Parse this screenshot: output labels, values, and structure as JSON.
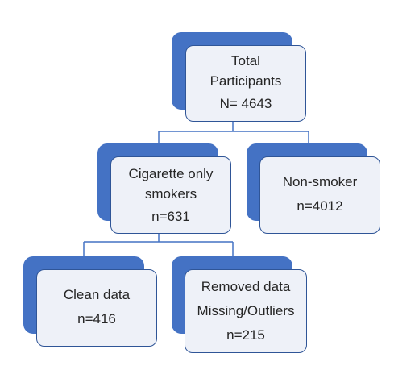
{
  "colors": {
    "shadow": "#4472C4",
    "card_fill": "#EEF1F8",
    "card_border": "#2F5597",
    "connector": "#4472C4",
    "text": "#262626"
  },
  "nodes": {
    "total": {
      "lines": [
        "Total",
        "Participants",
        "N= 4643"
      ]
    },
    "cigarette": {
      "lines": [
        "Cigarette only",
        "smokers",
        "n=631"
      ]
    },
    "nonsmoker": {
      "lines": [
        "Non-smoker",
        "n=4012"
      ]
    },
    "clean": {
      "lines": [
        "Clean data",
        "n=416"
      ]
    },
    "removed": {
      "lines": [
        "Removed data",
        "Missing/Outliers",
        "n=215"
      ]
    }
  }
}
